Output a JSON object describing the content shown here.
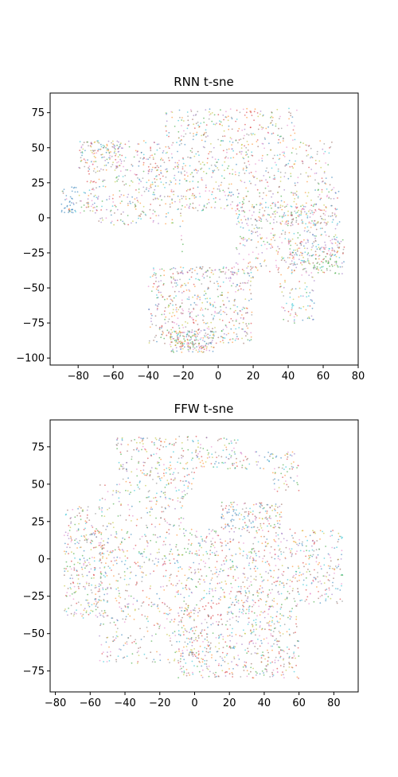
{
  "palette": [
    "#1f77b4",
    "#ff7f0e",
    "#2ca02c",
    "#d62728",
    "#9467bd",
    "#8c564b",
    "#e377c2",
    "#7f7f7f",
    "#bcbd22",
    "#17becf"
  ],
  "chart_data": [
    {
      "type": "scatter",
      "title": "RNN t-sne",
      "xlabel": "",
      "ylabel": "",
      "xlim": [
        -96,
        80
      ],
      "ylim": [
        -105,
        89
      ],
      "xticks": [
        -80,
        -60,
        -40,
        -20,
        0,
        20,
        40,
        60,
        80
      ],
      "yticks": [
        75,
        50,
        25,
        0,
        -25,
        -50,
        -75,
        -100
      ],
      "grid": false,
      "legend": "none",
      "point_count_approx": 5000,
      "series_note_colors": "tab10 categorical colors, tiny translucent markers",
      "density_regions": [
        {
          "x": [
            -28,
            -2
          ],
          "y": [
            -96,
            -80
          ],
          "weight": 1.2
        },
        {
          "x": [
            -40,
            20
          ],
          "y": [
            -90,
            -35
          ],
          "weight": 3.0
        },
        {
          "x": [
            -22,
            70
          ],
          "y": [
            -40,
            10
          ],
          "weight": 3.5
        },
        {
          "x": [
            -70,
            70
          ],
          "y": [
            -5,
            25
          ],
          "weight": 3.0
        },
        {
          "x": [
            -75,
            65
          ],
          "y": [
            25,
            55
          ],
          "weight": 3.2
        },
        {
          "x": [
            -30,
            45
          ],
          "y": [
            55,
            78
          ],
          "weight": 1.4
        },
        {
          "x": [
            -90,
            -70
          ],
          "y": [
            3,
            22
          ],
          "weight": 0.5
        },
        {
          "x": [
            -80,
            -55
          ],
          "y": [
            35,
            55
          ],
          "weight": 0.6
        },
        {
          "x": [
            40,
            72
          ],
          "y": [
            -40,
            -15
          ],
          "weight": 0.8
        },
        {
          "x": [
            35,
            55
          ],
          "y": [
            -75,
            -40
          ],
          "weight": 0.6
        }
      ],
      "empty_regions": [
        {
          "x": [
            -20,
            10
          ],
          "y": [
            -35,
            5
          ]
        },
        {
          "x": [
            -96,
            -40
          ],
          "y": [
            -105,
            -10
          ]
        },
        {
          "x": [
            -96,
            -70
          ],
          "y": [
            55,
            89
          ]
        }
      ],
      "color_clusters": [
        {
          "x": -88,
          "y": 6,
          "color": 0
        },
        {
          "x": -82,
          "y": 20,
          "color": 0
        },
        {
          "x": -75,
          "y": 27,
          "color": 3
        },
        {
          "x": 18,
          "y": 70,
          "color": 3
        },
        {
          "x": 62,
          "y": -35,
          "color": 2
        },
        {
          "x": -22,
          "y": -25,
          "color": 2
        },
        {
          "x": 45,
          "y": -60,
          "color": 9
        }
      ]
    },
    {
      "type": "scatter",
      "title": "FFW t-sne",
      "xlabel": "",
      "ylabel": "",
      "xlim": [
        -83,
        94
      ],
      "ylim": [
        -89,
        93
      ],
      "xticks": [
        -80,
        -60,
        -40,
        -20,
        0,
        20,
        40,
        60,
        80
      ],
      "yticks": [
        75,
        50,
        25,
        0,
        -25,
        -50,
        -75
      ],
      "grid": false,
      "legend": "none",
      "point_count_approx": 5000,
      "series_note_colors": "tab10 categorical colors, tiny translucent markers",
      "density_regions": [
        {
          "x": [
            -75,
            -50
          ],
          "y": [
            -40,
            35
          ],
          "weight": 1.6
        },
        {
          "x": [
            -55,
            0
          ],
          "y": [
            -70,
            50
          ],
          "weight": 3.5
        },
        {
          "x": [
            -45,
            25
          ],
          "y": [
            50,
            82
          ],
          "weight": 1.8
        },
        {
          "x": [
            0,
            85
          ],
          "y": [
            -30,
            20
          ],
          "weight": 3.5
        },
        {
          "x": [
            -10,
            60
          ],
          "y": [
            -80,
            -30
          ],
          "weight": 3.0
        },
        {
          "x": [
            5,
            50
          ],
          "y": [
            20,
            38
          ],
          "weight": 1.0
        },
        {
          "x": [
            20,
            60
          ],
          "y": [
            45,
            72
          ],
          "weight": 0.8
        }
      ],
      "empty_regions": [
        {
          "x": [
            0,
            45
          ],
          "y": [
            38,
            60
          ]
        },
        {
          "x": [
            -5,
            15
          ],
          "y": [
            20,
            38
          ]
        }
      ],
      "color_clusters": [
        {
          "x": 22,
          "y": 28,
          "color": 0
        },
        {
          "x": 45,
          "y": 68,
          "color": 0
        },
        {
          "x": 60,
          "y": 22,
          "color": 3
        },
        {
          "x": 10,
          "y": -35,
          "color": 3
        },
        {
          "x": 52,
          "y": 28,
          "color": 1
        },
        {
          "x": -5,
          "y": 10,
          "color": 2
        }
      ]
    }
  ]
}
